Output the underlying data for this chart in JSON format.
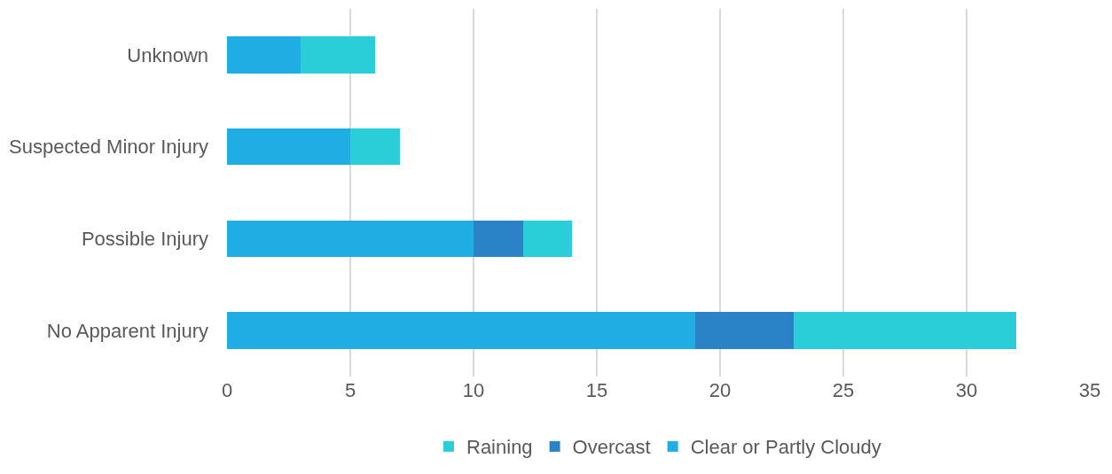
{
  "chart_data": {
    "type": "bar",
    "orientation": "horizontal",
    "stacked": true,
    "categories": [
      "Unknown",
      "Suspected Minor Injury",
      "Possible Injury",
      "No Apparent Injury"
    ],
    "series": [
      {
        "name": "Clear or Partly Cloudy",
        "color": "#1fade4",
        "values": [
          3,
          5,
          10,
          19
        ]
      },
      {
        "name": "Overcast",
        "color": "#2983c6",
        "values": [
          0,
          0,
          2,
          4
        ]
      },
      {
        "name": "Raining",
        "color": "#29ced8",
        "values": [
          3,
          2,
          2,
          9
        ]
      }
    ],
    "xlim": [
      0,
      35
    ],
    "xticks": [
      0,
      5,
      10,
      15,
      20,
      25,
      30,
      35
    ],
    "grid": "x",
    "legend": "bottom"
  }
}
